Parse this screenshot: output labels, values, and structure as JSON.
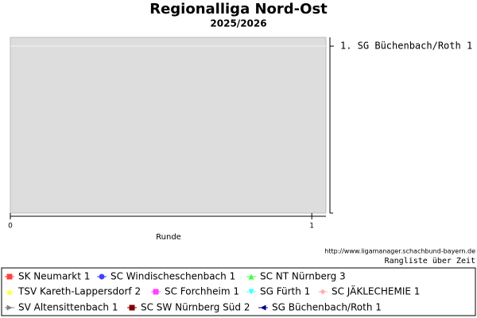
{
  "chart_data": {
    "type": "line",
    "title": "Regionalliga Nord-Ost",
    "subtitle": "2025/2026",
    "xlabel": "Runde",
    "xlim": [
      0,
      1.047
    ],
    "xticks": [
      0,
      1
    ],
    "y2lim": [
      0.5,
      10.5
    ],
    "y2_inverted": true,
    "y2ticks": [
      {
        "value": 1,
        "label": "1. SG Büchenbach/Roth 1"
      }
    ],
    "plot_color": "#dddddd",
    "source": "http://www.ligamanager.schachbund-bayern.de",
    "caption": "Rangliste über Zeit",
    "series": [
      {
        "name": "SK Neumarkt 1",
        "color": "#ff4040",
        "marker": "square"
      },
      {
        "name": "SC Windischeschenbach 1",
        "color": "#4040ff",
        "marker": "circle"
      },
      {
        "name": "SC NT Nürnberg 3",
        "color": "#40ff40",
        "marker": "triangle-up"
      },
      {
        "name": "TSV Kareth-Lappersdorf 2",
        "color": "#ffff40",
        "marker": "triangle-up"
      },
      {
        "name": "SC Forchheim 1",
        "color": "#ff40ff",
        "marker": "square"
      },
      {
        "name": "SG Fürth 1",
        "color": "#40ffff",
        "marker": "triangle-down"
      },
      {
        "name": "SC JÄKLECHEMIE 1",
        "color": "#ffb0b0",
        "marker": "diamond"
      },
      {
        "name": "SV Altensittenbach 1",
        "color": "#808080",
        "marker": "triangle-right"
      },
      {
        "name": "SC SW Nürnberg Süd 2",
        "color": "#800000",
        "marker": "square"
      },
      {
        "name": "SG Büchenbach/Roth 1",
        "color": "#000080",
        "marker": "triangle-left"
      }
    ]
  }
}
